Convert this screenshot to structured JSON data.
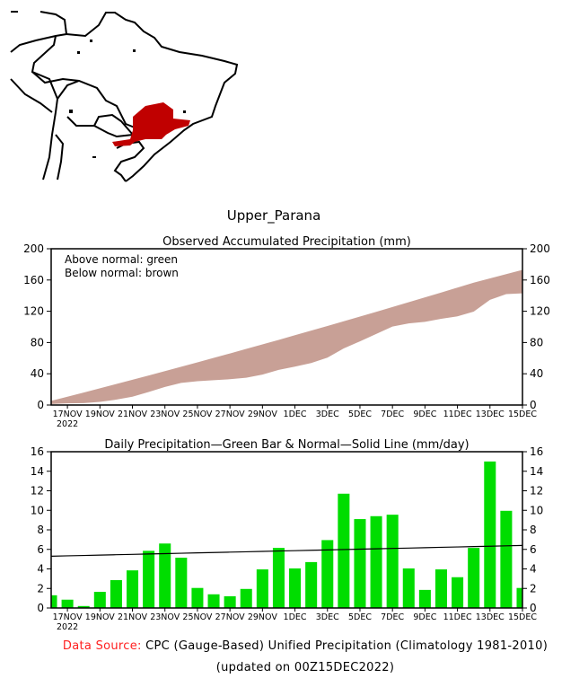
{
  "region_title": "Upper_Parana",
  "map": {
    "highlight_color": "#c00000",
    "region": "Upper_Parana"
  },
  "chart_data": [
    {
      "type": "area",
      "title": "Observed Accumulated Precipitation (mm)",
      "legend_lines": [
        "Above normal: green",
        "Below normal: brown"
      ],
      "legend_placement": "top-left",
      "colors": {
        "above": "#00cc00",
        "below": "#c8a096"
      },
      "ylim": [
        0,
        200
      ],
      "yticks": [
        "0",
        "40",
        "80",
        "120",
        "160",
        "200"
      ],
      "ytick_values": [
        0,
        40,
        80,
        120,
        160,
        200
      ],
      "xticks": [
        "17NOV",
        "19NOV",
        "21NOV",
        "23NOV",
        "25NOV",
        "27NOV",
        "29NOV",
        "1DEC",
        "3DEC",
        "5DEC",
        "7DEC",
        "9DEC",
        "11DEC",
        "13DEC",
        "15DEC"
      ],
      "xtick_day_index": [
        1,
        3,
        5,
        7,
        9,
        11,
        13,
        15,
        17,
        19,
        21,
        23,
        25,
        27,
        29
      ],
      "xyear": "2022",
      "dates": [
        "16NOV",
        "17NOV",
        "18NOV",
        "19NOV",
        "20NOV",
        "21NOV",
        "22NOV",
        "23NOV",
        "24NOV",
        "25NOV",
        "26NOV",
        "27NOV",
        "28NOV",
        "29NOV",
        "30NOV",
        "1DEC",
        "2DEC",
        "3DEC",
        "4DEC",
        "5DEC",
        "6DEC",
        "7DEC",
        "8DEC",
        "9DEC",
        "10DEC",
        "11DEC",
        "12DEC",
        "13DEC",
        "14DEC",
        "15DEC"
      ],
      "observed_accum": [
        1.3,
        2.2,
        2.4,
        4.0,
        6.9,
        10.7,
        16.6,
        23.2,
        28.3,
        30.4,
        31.8,
        33.0,
        34.9,
        38.9,
        45.0,
        49.1,
        53.8,
        60.7,
        72.4,
        81.5,
        90.9,
        100.5,
        104.5,
        106.4,
        110.3,
        113.5,
        119.6,
        134.6,
        142.0,
        143.0
      ],
      "normal_accum": [
        5.3,
        10.6,
        16.0,
        21.4,
        26.8,
        32.3,
        37.8,
        43.4,
        49.0,
        54.6,
        60.3,
        66.0,
        71.8,
        77.6,
        83.4,
        89.3,
        95.2,
        101.2,
        107.2,
        113.2,
        119.3,
        125.4,
        131.6,
        137.8,
        144.0,
        150.3,
        156.6,
        162.0,
        167.5,
        173.0
      ]
    },
    {
      "type": "bar",
      "title": "Daily Precipitation—Green Bar & Normal—Solid Line (mm/day)",
      "bar_color": "#00dd00",
      "ylim": [
        0,
        16
      ],
      "yticks": [
        "0",
        "2",
        "4",
        "6",
        "8",
        "10",
        "12",
        "14",
        "16"
      ],
      "ytick_values": [
        0,
        2,
        4,
        6,
        8,
        10,
        12,
        14,
        16
      ],
      "xticks": [
        "17NOV",
        "19NOV",
        "21NOV",
        "23NOV",
        "25NOV",
        "27NOV",
        "29NOV",
        "1DEC",
        "3DEC",
        "5DEC",
        "7DEC",
        "9DEC",
        "11DEC",
        "13DEC",
        "15DEC"
      ],
      "xtick_day_index": [
        1,
        3,
        5,
        7,
        9,
        11,
        13,
        15,
        17,
        19,
        21,
        23,
        25,
        27,
        29
      ],
      "xyear": "2022",
      "daily": [
        1.3,
        0.85,
        0.2,
        1.65,
        2.85,
        3.85,
        5.85,
        6.6,
        5.15,
        2.05,
        1.4,
        1.2,
        1.95,
        3.95,
        6.15,
        4.05,
        4.7,
        6.95,
        11.7,
        9.1,
        9.4,
        9.55,
        4.05,
        1.85,
        3.95,
        3.15,
        6.15,
        15.0,
        9.95,
        2.05
      ],
      "normal_daily_start": 5.3,
      "normal_daily_end": 6.4
    }
  ],
  "footer": {
    "source_label": "Data Source:",
    "source_text": "CPC (Gauge-Based) Unified Precipitation (Climatology 1981-2010)",
    "updated": "(updated on 00Z15DEC2022)"
  }
}
